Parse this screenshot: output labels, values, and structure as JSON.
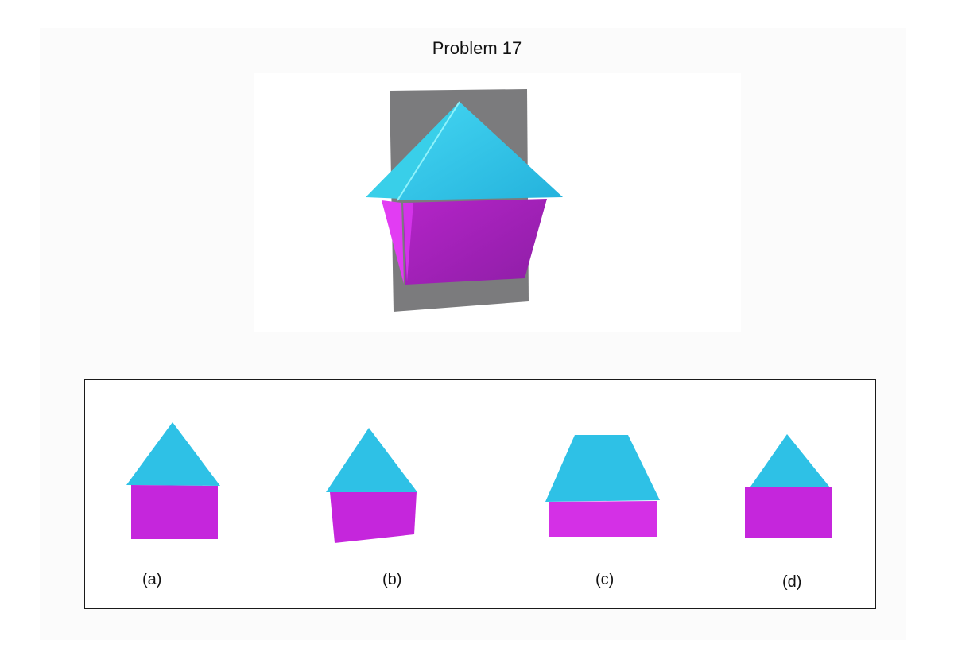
{
  "title": "Problem 17",
  "colors": {
    "roof": "#2ec1e6",
    "roof_light": "#4de3f7",
    "roof_shadow": "#1fa3cc",
    "body": "#c526dc",
    "body_dark": "#a51fb7",
    "body_light": "#e23cf3",
    "plane": "#7b7b7d"
  },
  "options": [
    {
      "label": "(a)"
    },
    {
      "label": "(b)"
    },
    {
      "label": "(c)"
    },
    {
      "label": "(d)"
    }
  ]
}
